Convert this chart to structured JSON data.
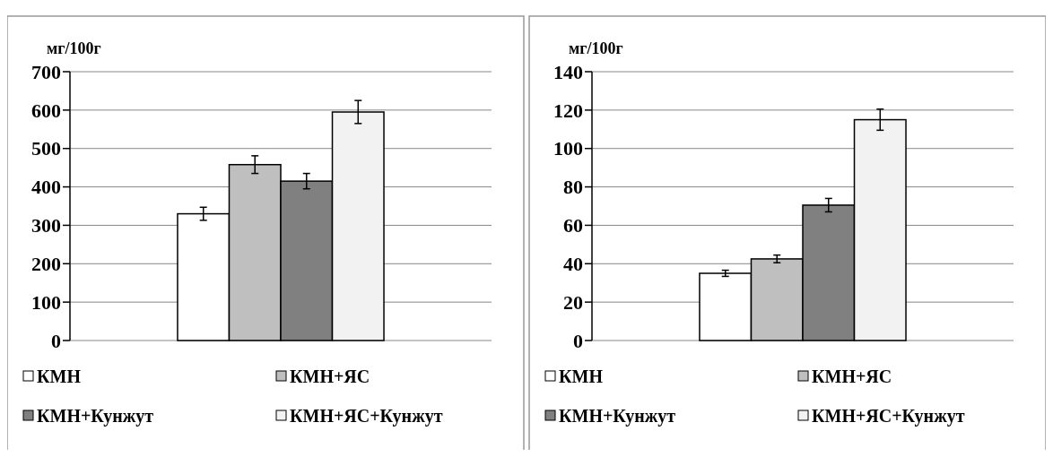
{
  "chart_data": [
    {
      "type": "bar",
      "ylabel": "мг/100г",
      "categories": [
        null
      ],
      "ylim": [
        0,
        700
      ],
      "yticks": [
        0,
        100,
        200,
        300,
        400,
        500,
        600,
        700
      ],
      "grid": "y",
      "legend": "bottom",
      "series": [
        {
          "name": "КМН",
          "color": "#ffffff",
          "values": [
            330
          ],
          "errors": [
            17
          ]
        },
        {
          "name": "КМН+ЯС",
          "color": "#bfbfbf",
          "values": [
            458
          ],
          "errors": [
            23
          ]
        },
        {
          "name": "КМН+Кунжут",
          "color": "#808080",
          "values": [
            415
          ],
          "errors": [
            20
          ]
        },
        {
          "name": "КМН+ЯС+Кунжут",
          "color": "#f2f2f2",
          "values": [
            595
          ],
          "errors": [
            30
          ]
        }
      ]
    },
    {
      "type": "bar",
      "ylabel": "мг/100г",
      "categories": [
        null
      ],
      "ylim": [
        0,
        140
      ],
      "yticks": [
        0,
        20,
        40,
        60,
        80,
        100,
        120,
        140
      ],
      "grid": "y",
      "legend": "bottom",
      "series": [
        {
          "name": "КМН",
          "color": "#ffffff",
          "values": [
            35
          ],
          "errors": [
            1.6
          ]
        },
        {
          "name": "КМН+ЯС",
          "color": "#bfbfbf",
          "values": [
            42.5
          ],
          "errors": [
            2
          ]
        },
        {
          "name": "КМН+Кунжут",
          "color": "#808080",
          "values": [
            70.5
          ],
          "errors": [
            3.5
          ]
        },
        {
          "name": "КМН+ЯС+Кунжут",
          "color": "#f2f2f2",
          "values": [
            115
          ],
          "errors": [
            5.5
          ]
        }
      ]
    }
  ]
}
